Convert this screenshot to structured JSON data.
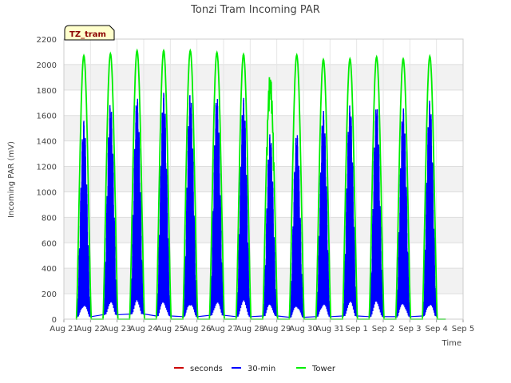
{
  "chart_data": {
    "type": "line",
    "title": "Tonzi Tram Incoming PAR",
    "badge": "TZ_tram",
    "xlabel": "Time",
    "ylabel": "Incoming PAR (mV)",
    "ylim": [
      0,
      2200
    ],
    "yticks": [
      0,
      200,
      400,
      600,
      800,
      1000,
      1200,
      1400,
      1600,
      1800,
      2000,
      2200
    ],
    "xlim": [
      0,
      15
    ],
    "xticks": [
      {
        "x": 0,
        "label": "Aug 21"
      },
      {
        "x": 1,
        "label": "Aug 22"
      },
      {
        "x": 2,
        "label": "Aug 23"
      },
      {
        "x": 3,
        "label": "Aug 24"
      },
      {
        "x": 4,
        "label": "Aug 25"
      },
      {
        "x": 5,
        "label": "Aug 26"
      },
      {
        "x": 6,
        "label": "Aug 27"
      },
      {
        "x": 7,
        "label": "Aug 28"
      },
      {
        "x": 8,
        "label": "Aug 29"
      },
      {
        "x": 9,
        "label": "Aug 30"
      },
      {
        "x": 10,
        "label": "Aug 31"
      },
      {
        "x": 11,
        "label": "Sep 1"
      },
      {
        "x": 12,
        "label": "Sep 2"
      },
      {
        "x": 13,
        "label": "Sep 3"
      },
      {
        "x": 14,
        "label": "Sep 4"
      },
      {
        "x": 15,
        "label": "Sep 5"
      }
    ],
    "grid": true,
    "legend_position": "bottom",
    "series": [
      {
        "name": "seconds",
        "color": "#cc0000",
        "values": []
      },
      {
        "name": "30-min",
        "color": "#0000ff",
        "day_centers": [
          0.75,
          1.75,
          2.75,
          3.75,
          4.75,
          5.75,
          6.75,
          7.75,
          8.75,
          9.75,
          10.75,
          11.75,
          12.75,
          13.75
        ],
        "daily_peaks": [
          1560,
          1700,
          1750,
          1780,
          1780,
          1760,
          1740,
          1460,
          1470,
          1640,
          1690,
          1690,
          1660,
          1720
        ],
        "night_values": [
          20,
          35,
          40,
          25,
          20,
          30,
          20,
          25,
          15,
          20,
          25,
          20,
          20,
          25
        ]
      },
      {
        "name": "Tower",
        "color": "#00ee00",
        "day_centers": [
          0.75,
          1.75,
          2.75,
          3.75,
          4.75,
          5.75,
          6.75,
          7.75,
          8.75,
          9.75,
          10.75,
          11.75,
          12.75,
          13.75
        ],
        "daily_peaks": [
          2070,
          2085,
          2110,
          2110,
          2110,
          2095,
          2080,
          1935,
          2075,
          2040,
          2045,
          2060,
          2045,
          2065
        ],
        "night_values": [
          0,
          0,
          0,
          0,
          0,
          0,
          0,
          0,
          0,
          0,
          0,
          0,
          0,
          0
        ]
      }
    ]
  }
}
